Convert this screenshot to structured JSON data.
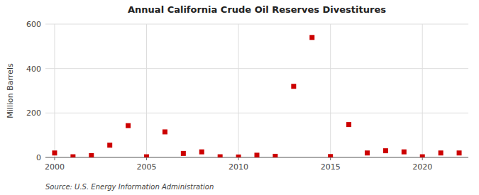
{
  "chart_data": {
    "type": "scatter",
    "title": "Annual California Crude Oil Reserves Divestitures",
    "ylabel": "Million Barrels",
    "annotations": [
      "Source: U.S. Energy Information Administration"
    ],
    "x": [
      2000,
      2001,
      2002,
      2003,
      2004,
      2005,
      2006,
      2007,
      2008,
      2009,
      2010,
      2011,
      2012,
      2013,
      2014,
      2015,
      2016,
      2017,
      2018,
      2019,
      2020,
      2021,
      2022
    ],
    "values": [
      20,
      3,
      8,
      55,
      143,
      3,
      115,
      18,
      25,
      3,
      2,
      10,
      5,
      320,
      540,
      4,
      148,
      20,
      30,
      25,
      3,
      20,
      20
    ],
    "color": "#cc0000",
    "marker": "square",
    "xlim": [
      1999.5,
      2022.5
    ],
    "ylim": [
      0,
      600
    ],
    "xticks": [
      2000,
      2005,
      2010,
      2015,
      2020
    ],
    "yticks": [
      0,
      200,
      400,
      600
    ],
    "grid": true
  }
}
